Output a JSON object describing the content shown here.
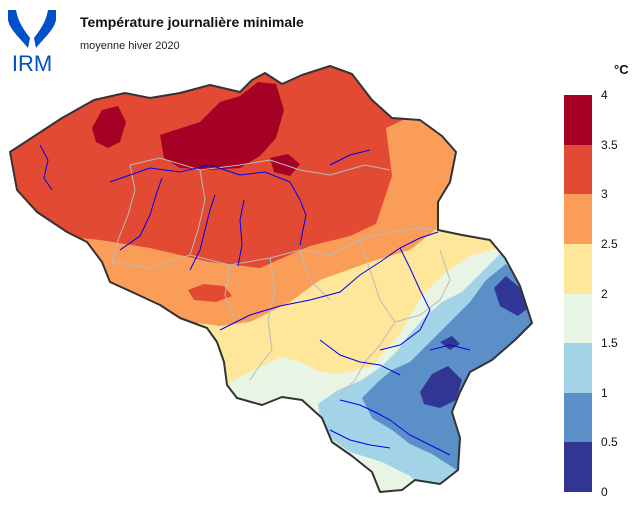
{
  "header": {
    "logo_text": "IRM",
    "title": "Température journalière minimale",
    "subtitle": "moyenne hiver 2020"
  },
  "legend": {
    "unit": "°C",
    "ticks": [
      "4",
      "3.5",
      "3",
      "2.5",
      "2",
      "1.5",
      "1",
      "0.5",
      "0"
    ],
    "classes": [
      {
        "range": [
          3.5,
          4.0
        ],
        "color": "#a50026"
      },
      {
        "range": [
          3.0,
          3.5
        ],
        "color": "#e34a33"
      },
      {
        "range": [
          2.5,
          3.0
        ],
        "color": "#f99d59"
      },
      {
        "range": [
          2.0,
          2.5
        ],
        "color": "#fee79b"
      },
      {
        "range": [
          1.5,
          2.0
        ],
        "color": "#e8f5e4"
      },
      {
        "range": [
          1.0,
          1.5
        ],
        "color": "#a3d3e6"
      },
      {
        "range": [
          0.5,
          1.0
        ],
        "color": "#5b8fc7"
      },
      {
        "range": [
          0.0,
          0.5
        ],
        "color": "#313695"
      }
    ]
  },
  "colors": {
    "border": "#333333",
    "rivers": "#0000ee",
    "provinces": "#bbbbbb",
    "logo": "#0050c8"
  }
}
